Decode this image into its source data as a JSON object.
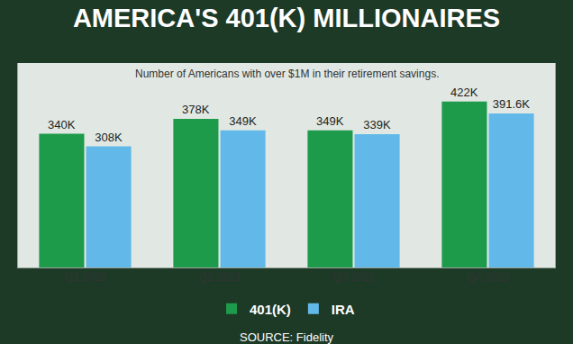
{
  "chart_data": {
    "type": "bar",
    "title": "AMERICA'S 401(K) MILLIONAIRES",
    "subtitle": "Number of Americans with over $1M in their retirement savings.",
    "categories": [
      "Q1 2023",
      "Q2 2023",
      "Q3 2023",
      "Q4 2023"
    ],
    "series": [
      {
        "name": "401(K)",
        "color": "#1e9a4b",
        "values": [
          340000,
          378000,
          349000,
          422000
        ],
        "value_labels": [
          "340K",
          "378K",
          "349K",
          "422K"
        ]
      },
      {
        "name": "IRA",
        "color": "#62b9e9",
        "values": [
          308000,
          349000,
          339000,
          391600
        ],
        "value_labels": [
          "308K",
          "349K",
          "339K",
          "391.6K"
        ]
      }
    ],
    "ylim": [
      0,
      520000
    ],
    "grid": false,
    "legend": "bottom",
    "data_labels": true,
    "tick_labels": "x",
    "source": "SOURCE: Fidelity"
  }
}
